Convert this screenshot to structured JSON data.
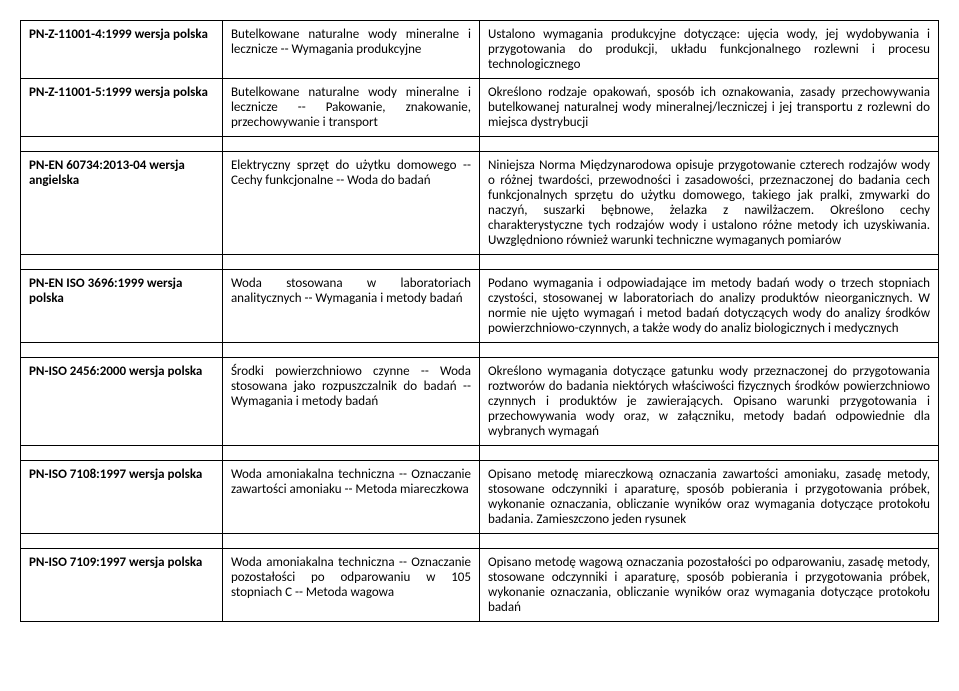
{
  "rows": [
    {
      "id": "PN-Z-11001-4:1999 wersja polska",
      "title": "Butelkowane naturalne wody mineralne i lecznicze -- Wymagania produkcyjne",
      "desc": "Ustalono wymagania produkcyjne dotyczące: ujęcia wody, jej wydobywania i przygotowania do produkcji, układu funkcjonalnego rozlewni i procesu technologicznego"
    },
    {
      "id": "PN-Z-11001-5:1999 wersja polska",
      "title": "Butelkowane naturalne wody mineralne i lecznicze -- Pakowanie, znakowanie, przechowywanie i transport",
      "desc": "Określono rodzaje opakowań, sposób ich oznakowania, zasady przechowywania butelkowanej naturalnej wody mineralnej/leczniczej i jej transportu z rozlewni do miejsca dystrybucji"
    },
    {
      "id": "PN-EN 60734:2013-04 wersja angielska",
      "title": "Elektryczny sprzęt do użytku domowego -- Cechy funkcjonalne -- Woda do badań",
      "desc": "Niniejsza Norma Międzynarodowa opisuje przygotowanie czterech rodzajów wody o różnej twardości, przewodności i zasadowości, przeznaczonej do badania cech funkcjonalnych sprzętu do użytku domowego, takiego jak pralki, zmywarki do naczyń, suszarki bębnowe, żelazka z nawilżaczem. Określono cechy charakterystyczne tych rodzajów wody i ustalono różne metody ich uzyskiwania. Uwzględniono również warunki techniczne wymaganych pomiarów"
    },
    {
      "id": "PN-EN ISO 3696:1999 wersja polska",
      "title": "Woda stosowana w laboratoriach analitycznych -- Wymagania i metody badań",
      "desc": "Podano wymagania i odpowiadające im metody badań wody o trzech stopniach czystości, stosowanej w laboratoriach do analizy produktów nieorganicznych. W normie nie ujęto wymagań i metod badań dotyczących wody do analizy środków powierzchniowo-czynnych, a także wody do analiz biologicznych i medycznych"
    },
    {
      "id": "PN-ISO 2456:2000 wersja polska",
      "title": "Środki powierzchniowo czynne -- Woda stosowana jako rozpuszczalnik do badań -- Wymagania i metody badań",
      "desc": "Określono wymagania dotyczące gatunku wody przeznaczonej do przygotowania roztworów do badania niektórych właściwości fizycznych środków powierzchniowo czynnych i produktów je zawierających. Opisano warunki przygotowania i przechowywania wody oraz, w załączniku, metody badań odpowiednie dla wybranych wymagań"
    },
    {
      "id": "PN-ISO 7108:1997 wersja polska",
      "title": "Woda amoniakalna techniczna -- Oznaczanie zawartości amoniaku -- Metoda miareczkowa",
      "desc": "Opisano metodę miareczkową oznaczania zawartości amoniaku, zasadę metody, stosowane odczynniki i aparaturę, sposób pobierania i przygotowania próbek, wykonanie oznaczania, obliczanie wyników oraz wymagania dotyczące protokołu badania. Zamieszczono jeden rysunek"
    },
    {
      "id": "PN-ISO 7109:1997 wersja polska",
      "title": "Woda amoniakalna techniczna -- Oznaczanie pozostałości po odparowaniu w 105 stopniach C -- Metoda wagowa",
      "desc": "Opisano metodę wagową oznaczania pozostałości po odparowaniu, zasadę metody, stosowane odczynniki i aparaturę, sposób pobierania i przygotowania próbek, wykonanie oznaczania, obliczanie wyników oraz wymagania dotyczące protokołu badań"
    }
  ]
}
